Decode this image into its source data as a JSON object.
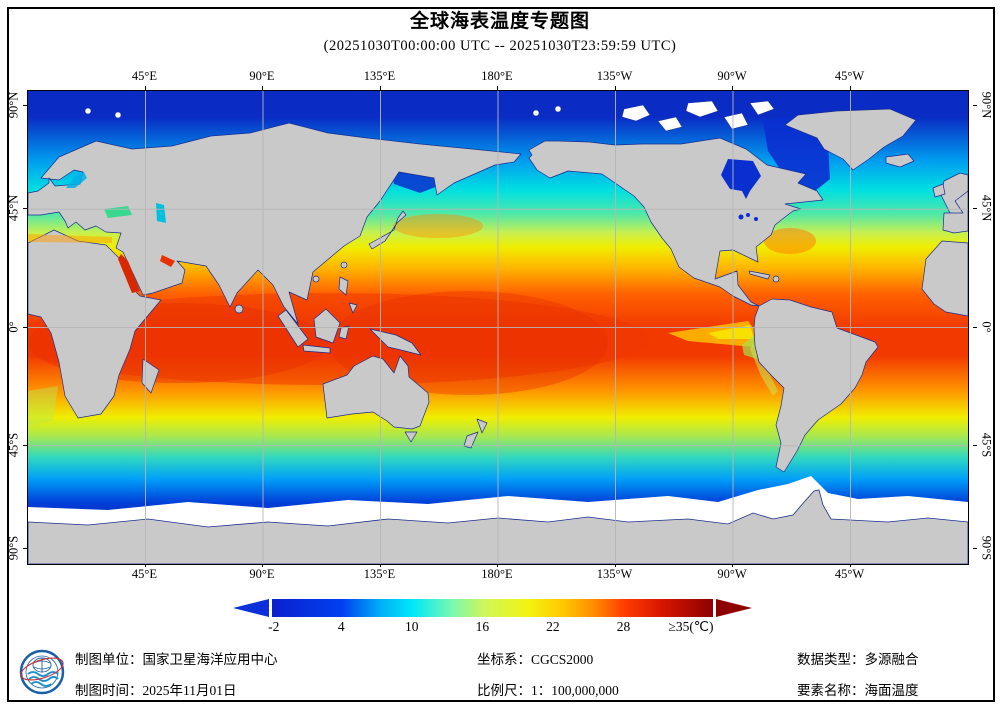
{
  "title": "全球海表温度专题图",
  "subtitle": "(20251030T00:00:00 UTC -- 20251030T23:59:59 UTC)",
  "map": {
    "name": "global-sea-surface-temperature-map",
    "projection_note": "equirectangular, centered on 180°",
    "lon_labels": [
      "45°E",
      "90°E",
      "135°E",
      "180°E",
      "135°W",
      "90°W",
      "45°W"
    ],
    "lat_labels": [
      "90°N",
      "45°N",
      "0°",
      "45°S",
      "90°S"
    ]
  },
  "colorbar": {
    "tick_labels": [
      "-2",
      "4",
      "10",
      "16",
      "22",
      "28",
      "≥35(℃)"
    ],
    "range_min": -2,
    "range_max": 35,
    "unit": "℃",
    "left_arrow_color": "#0b2fd8",
    "right_arrow_color": "#8e0000"
  },
  "footer": {
    "mapping_unit": "制图单位：国家卫星海洋应用中心",
    "mapping_time": "制图时间：2025年11月01日",
    "coordinate_system": "坐标系：CGCS2000",
    "scale": "比例尺：1：100,000,000",
    "data_type": "数据类型：多源融合",
    "element_name": "要素名称：海面温度"
  },
  "colors": {
    "land": "#c9c9c9",
    "coastline": "#1b2d8f",
    "grid": "#b6b6b6",
    "equator_warm": "#ee3600",
    "polar_cold": "#0a2cc4",
    "ice": "#ffffff"
  }
}
